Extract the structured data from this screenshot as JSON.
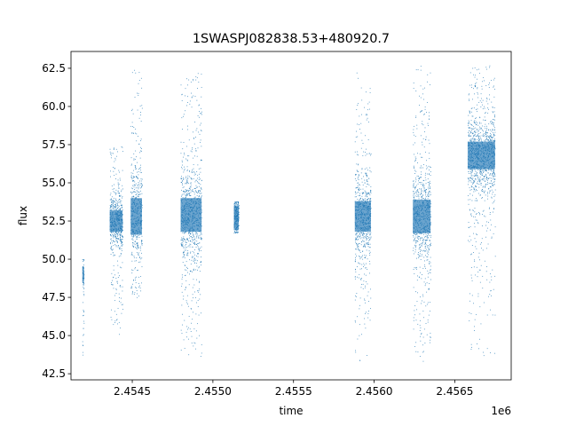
{
  "chart_data": {
    "type": "scatter",
    "title": "1SWASPJ082838.53+480920.7",
    "xlabel": "time",
    "ylabel": "flux",
    "x_offset_label": "1e6",
    "xlim": [
      2.45412,
      2.45685
    ],
    "ylim": [
      42.1,
      63.6
    ],
    "x_ticks": [
      2.4545,
      2.455,
      2.4555,
      2.456,
      2.4565
    ],
    "x_tick_labels": [
      "2.4545",
      "2.4550",
      "2.4555",
      "2.4560",
      "2.4565"
    ],
    "y_ticks": [
      42.5,
      45.0,
      47.5,
      50.0,
      52.5,
      55.0,
      57.5,
      60.0,
      62.5
    ],
    "y_tick_labels": [
      "42.5",
      "45.0",
      "47.5",
      "50.0",
      "52.5",
      "55.0",
      "57.5",
      "60.0",
      "62.5"
    ],
    "marker_color": "#1f77b4",
    "grid": false,
    "legend": "none",
    "clusters": [
      {
        "x_min": 2.45419,
        "x_max": 2.4542,
        "y_center": 49.0,
        "y_core_half": 0.5,
        "y_low": 43.3,
        "y_high": 50.4
      },
      {
        "x_min": 2.45436,
        "x_max": 2.45444,
        "y_center": 52.5,
        "y_core_half": 0.7,
        "y_low": 45.0,
        "y_high": 57.5
      },
      {
        "x_min": 2.45449,
        "x_max": 2.45456,
        "y_center": 52.8,
        "y_core_half": 1.2,
        "y_low": 47.5,
        "y_high": 62.6
      },
      {
        "x_min": 2.4548,
        "x_max": 2.45493,
        "y_center": 52.9,
        "y_core_half": 1.1,
        "y_low": 43.5,
        "y_high": 62.2
      },
      {
        "x_min": 2.45513,
        "x_max": 2.45516,
        "y_center": 52.7,
        "y_core_half": 0.8,
        "y_low": 51.7,
        "y_high": 53.8
      },
      {
        "x_min": 2.45588,
        "x_max": 2.45598,
        "y_center": 52.8,
        "y_core_half": 1.0,
        "y_low": 43.2,
        "y_high": 62.3
      },
      {
        "x_min": 2.45624,
        "x_max": 2.45635,
        "y_center": 52.8,
        "y_core_half": 1.1,
        "y_low": 43.3,
        "y_high": 62.7
      },
      {
        "x_min": 2.45658,
        "x_max": 2.45675,
        "y_center": 56.8,
        "y_core_half": 0.9,
        "y_low": 43.6,
        "y_high": 62.7
      }
    ]
  }
}
